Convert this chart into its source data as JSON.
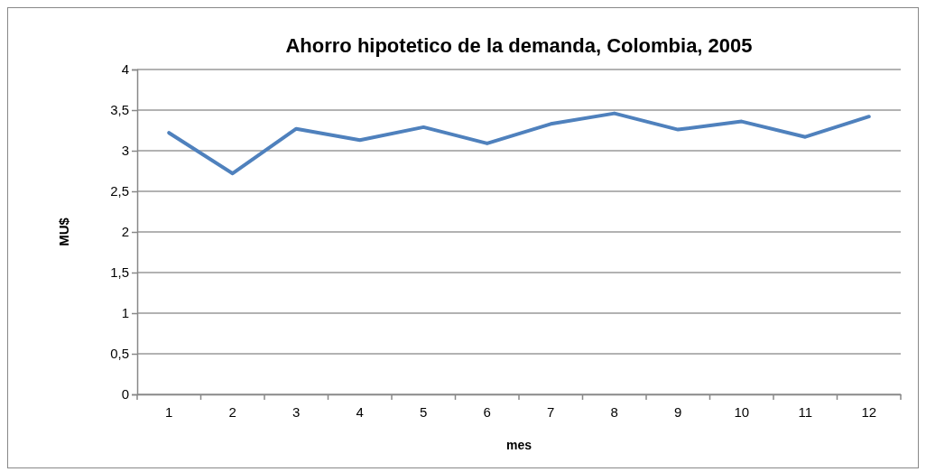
{
  "chart_data": {
    "type": "line",
    "title": "Ahorro hipotetico de la demanda, Colombia, 2005",
    "xlabel": "mes",
    "ylabel": "MU$",
    "categories": [
      "1",
      "2",
      "3",
      "4",
      "5",
      "6",
      "7",
      "8",
      "9",
      "10",
      "11",
      "12"
    ],
    "series": [
      {
        "color": "#4f81bd",
        "values": [
          3.22,
          2.72,
          3.27,
          3.13,
          3.29,
          3.09,
          3.33,
          3.46,
          3.26,
          3.36,
          3.17,
          3.42
        ]
      }
    ],
    "ylim": [
      0,
      4
    ],
    "yticks": [
      0,
      {
        "value": 0.5,
        "label": "0,5"
      },
      1,
      {
        "value": 1.5,
        "label": "1,5"
      },
      2,
      {
        "value": 2.5,
        "label": "2,5"
      },
      3,
      {
        "value": 3.5,
        "label": "3,5"
      },
      4
    ],
    "grid": "y",
    "marker": "none",
    "line_style": "solid"
  }
}
